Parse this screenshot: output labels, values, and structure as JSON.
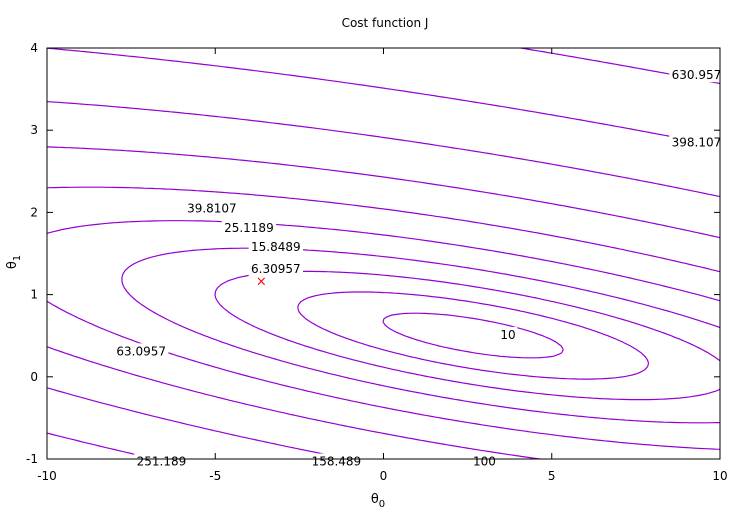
{
  "chart_data": {
    "type": "contour",
    "title": "Cost function J",
    "xlabel": "θ",
    "xlabel_sub": "0",
    "ylabel": "θ",
    "ylabel_sub": "1",
    "xlim": [
      -10,
      10
    ],
    "ylim": [
      -1,
      4
    ],
    "x_ticks": [
      -10,
      -5,
      0,
      5,
      10
    ],
    "y_ticks": [
      -1,
      0,
      1,
      2,
      3,
      4
    ],
    "grid": false,
    "line_color": "#9400d3",
    "marker_color": "#ff0000",
    "levels": [
      6.30957,
      10,
      15.8489,
      25.1189,
      39.8107,
      63.0957,
      100,
      158.489,
      251.189,
      398.107,
      630.957
    ],
    "minimum": {
      "theta0": -3.63,
      "theta1": 1.17,
      "marker": "×"
    },
    "contour_labels": [
      {
        "text": "630.957",
        "x": 9.3,
        "y": 3.67
      },
      {
        "text": "398.107",
        "x": 9.3,
        "y": 2.85
      },
      {
        "text": "39.8107",
        "x": -5.1,
        "y": 2.05
      },
      {
        "text": "25.1189",
        "x": -4.0,
        "y": 1.81
      },
      {
        "text": "15.8489",
        "x": -3.2,
        "y": 1.58
      },
      {
        "text": "6.30957",
        "x": -3.2,
        "y": 1.31
      },
      {
        "text": "10",
        "x": 3.7,
        "y": 0.51
      },
      {
        "text": "63.0957",
        "x": -7.2,
        "y": 0.31
      },
      {
        "text": "251.189",
        "x": -6.6,
        "y": -1.03
      },
      {
        "text": "158.489",
        "x": -1.4,
        "y": -1.03
      },
      {
        "text": "100",
        "x": 3.0,
        "y": -1.03
      }
    ]
  }
}
